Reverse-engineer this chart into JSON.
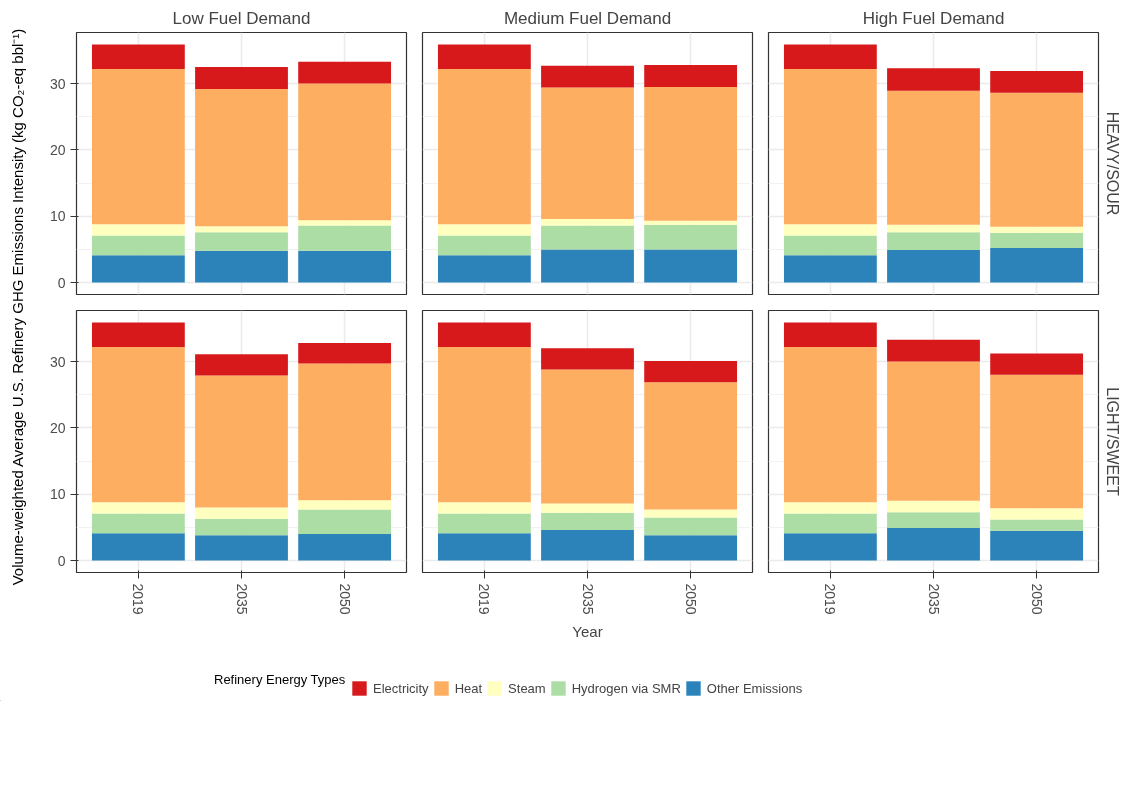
{
  "chart_data": [
    {
      "type": "bar",
      "title": "Low Fuel Demand",
      "ylabel": "Volume-weighted Average U.S. Refinery GHG Emissions Intensity (kg CO₂-eq bbl⁻¹)",
      "categories": [
        "2019",
        "2035",
        "2050"
      ],
      "stacked": true,
      "ylim": [
        -1.8,
        37.7
      ],
      "yticks": [
        0,
        10,
        20,
        30
      ],
      "grid": true,
      "tick_labels": "y",
      "series": [
        {
          "color": "#2b83ba",
          "values": [
            4.1,
            4.8,
            4.8
          ]
        },
        {
          "color": "#abdda4",
          "values": [
            3.0,
            2.8,
            3.8
          ]
        },
        {
          "color": "#ffffbf",
          "values": [
            1.7,
            0.9,
            0.8
          ]
        },
        {
          "color": "#fdae61",
          "values": [
            23.4,
            20.7,
            20.6
          ]
        },
        {
          "color": "#d7191c",
          "values": [
            3.7,
            3.3,
            3.3
          ]
        }
      ]
    },
    {
      "type": "bar",
      "title": "Medium Fuel Demand",
      "categories": [
        "2019",
        "2035",
        "2050"
      ],
      "stacked": true,
      "ylim": [
        -1.8,
        37.7
      ],
      "yticks": [
        0,
        10,
        20,
        30
      ],
      "grid": true,
      "tick_labels": false,
      "series": [
        {
          "color": "#2b83ba",
          "values": [
            4.1,
            5.0,
            5.0
          ]
        },
        {
          "color": "#abdda4",
          "values": [
            3.0,
            3.6,
            3.7
          ]
        },
        {
          "color": "#ffffbf",
          "values": [
            1.7,
            1.0,
            0.6
          ]
        },
        {
          "color": "#fdae61",
          "values": [
            23.4,
            19.8,
            20.2
          ]
        },
        {
          "color": "#d7191c",
          "values": [
            3.7,
            3.3,
            3.3
          ]
        }
      ]
    },
    {
      "type": "bar",
      "title": "High Fuel Demand",
      "annotations": [
        "HEAVY/SOUR"
      ],
      "categories": [
        "2019",
        "2035",
        "2050"
      ],
      "stacked": true,
      "ylim": [
        -1.8,
        37.7
      ],
      "yticks": [
        0,
        10,
        20,
        30
      ],
      "grid": true,
      "tick_labels": false,
      "series": [
        {
          "color": "#2b83ba",
          "values": [
            4.1,
            4.9,
            5.2
          ]
        },
        {
          "color": "#abdda4",
          "values": [
            3.0,
            2.7,
            2.3
          ]
        },
        {
          "color": "#ffffbf",
          "values": [
            1.7,
            1.1,
            0.9
          ]
        },
        {
          "color": "#fdae61",
          "values": [
            23.4,
            20.2,
            20.2
          ]
        },
        {
          "color": "#d7191c",
          "values": [
            3.7,
            3.4,
            3.3
          ]
        }
      ]
    },
    {
      "type": "bar",
      "categories": [
        "2019",
        "2035",
        "2050"
      ],
      "stacked": true,
      "ylim": [
        -1.8,
        37.7
      ],
      "yticks": [
        0,
        10,
        20,
        30
      ],
      "grid": true,
      "series": [
        {
          "color": "#2b83ba",
          "values": [
            4.1,
            3.8,
            4.0
          ]
        },
        {
          "color": "#abdda4",
          "values": [
            3.0,
            2.5,
            3.7
          ]
        },
        {
          "color": "#ffffbf",
          "values": [
            1.7,
            1.7,
            1.4
          ]
        },
        {
          "color": "#fdae61",
          "values": [
            23.4,
            19.9,
            20.6
          ]
        },
        {
          "color": "#d7191c",
          "values": [
            3.7,
            3.2,
            3.1
          ]
        }
      ]
    },
    {
      "type": "bar",
      "xlabel": "Year",
      "legend": "bottom",
      "legend_title": "Refinery Energy Types",
      "categories": [
        "2019",
        "2035",
        "2050"
      ],
      "stacked": true,
      "ylim": [
        -1.8,
        37.7
      ],
      "yticks": [
        0,
        10,
        20,
        30
      ],
      "grid": true,
      "tick_labels": "x",
      "series": [
        {
          "name": "Other Emissions",
          "color": "#2b83ba",
          "values": [
            4.1,
            4.6,
            3.8
          ]
        },
        {
          "name": "Hydrogen via SMR",
          "color": "#abdda4",
          "values": [
            3.0,
            2.6,
            2.7
          ]
        },
        {
          "name": "Steam",
          "color": "#ffffbf",
          "values": [
            1.7,
            1.4,
            1.2
          ]
        },
        {
          "name": "Heat",
          "color": "#fdae61",
          "values": [
            23.4,
            20.2,
            19.2
          ]
        },
        {
          "name": "Electricity",
          "color": "#d7191c",
          "values": [
            3.7,
            3.2,
            3.2
          ]
        }
      ]
    },
    {
      "type": "bar",
      "annotations": [
        "LIGHT/SWEET"
      ],
      "categories": [
        "2019",
        "2035",
        "2050"
      ],
      "stacked": true,
      "ylim": [
        -1.8,
        37.7
      ],
      "yticks": [
        0,
        10,
        20,
        30
      ],
      "grid": true,
      "tick_labels": "x",
      "series": [
        {
          "color": "#2b83ba",
          "values": [
            4.1,
            4.9,
            4.5
          ]
        },
        {
          "color": "#abdda4",
          "values": [
            3.0,
            2.4,
            1.7
          ]
        },
        {
          "color": "#ffffbf",
          "values": [
            1.7,
            1.7,
            1.7
          ]
        },
        {
          "color": "#fdae61",
          "values": [
            23.4,
            21.0,
            20.1
          ]
        },
        {
          "color": "#d7191c",
          "values": [
            3.7,
            3.3,
            3.2
          ]
        }
      ]
    }
  ]
}
